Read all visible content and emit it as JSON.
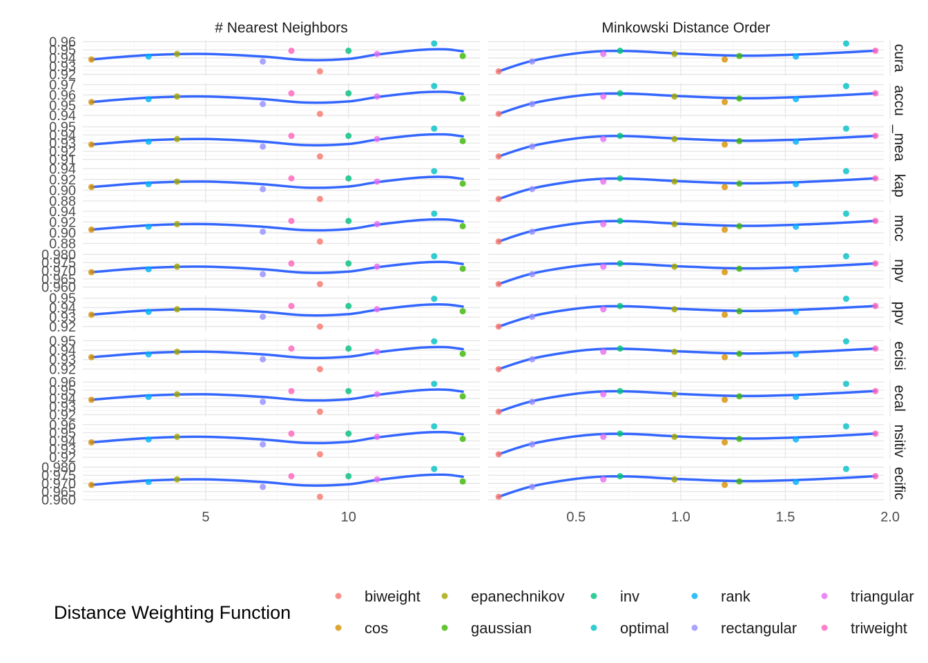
{
  "chart_data": {
    "type": "scatter",
    "facet_columns": [
      "# Nearest Neighbors",
      "Minkowski Distance Order"
    ],
    "facet_rows": [
      "cura",
      "accu",
      "_mea",
      "kap",
      "mcc",
      "npv",
      "ppv",
      "ecisi",
      "ecal",
      "nsitiv",
      "ecific"
    ],
    "x_ticks": [
      [
        5,
        10
      ],
      [
        0.5,
        1.0,
        1.5,
        2.0
      ]
    ],
    "x_tick_labels": [
      [
        "5",
        "10"
      ],
      [
        "0.5",
        "1.0",
        "1.5",
        "2.0"
      ]
    ],
    "xlim": [
      [
        0.7,
        14.6
      ],
      [
        0.08,
        1.97
      ]
    ],
    "row_y_ticks": [
      [
        "0.96",
        "0.95",
        "0.94",
        "0.93",
        "0.92"
      ],
      [
        "0.97",
        "0.96",
        "0.95",
        "0.94"
      ],
      [
        "0.95",
        "0.94",
        "0.93",
        "0.92",
        "0.91"
      ],
      [
        "0.94",
        "0.92",
        "0.90",
        "0.88"
      ],
      [
        "0.94",
        "0.92",
        "0.90",
        "0.88"
      ],
      [
        "0.980",
        "0.975",
        "0.970",
        "0.965",
        "0.960"
      ],
      [
        "0.95",
        "0.94",
        "0.93",
        "0.92"
      ],
      [
        "0.95",
        "0.94",
        "0.93",
        "0.92"
      ],
      [
        "0.96",
        "0.95",
        "0.94",
        "0.93",
        "0.92"
      ],
      [
        "0.96",
        "0.95",
        "0.94",
        "0.93",
        "0.92"
      ],
      [
        "0.980",
        "0.975",
        "0.970",
        "0.965",
        "0.960"
      ]
    ],
    "row_ylim": [
      [
        0.918,
        0.962
      ],
      [
        0.937,
        0.972
      ],
      [
        0.908,
        0.952
      ],
      [
        0.875,
        0.942
      ],
      [
        0.875,
        0.942
      ],
      [
        0.959,
        0.981
      ],
      [
        0.915,
        0.953
      ],
      [
        0.915,
        0.953
      ],
      [
        0.918,
        0.962
      ],
      [
        0.918,
        0.962
      ],
      [
        0.959,
        0.981
      ]
    ],
    "points": [
      {
        "weight": "biweight",
        "k": 9,
        "p": 0.13
      },
      {
        "weight": "cos",
        "k": 1,
        "p": 1.21
      },
      {
        "weight": "epanechnikov",
        "k": 4,
        "p": 0.97
      },
      {
        "weight": "gaussian",
        "k": 14,
        "p": 1.28
      },
      {
        "weight": "inv",
        "k": 10,
        "p": 0.71
      },
      {
        "weight": "optimal",
        "k": 13,
        "p": 1.79
      },
      {
        "weight": "rank",
        "k": 3,
        "p": 1.55
      },
      {
        "weight": "rectangular",
        "k": 7,
        "p": 0.29
      },
      {
        "weight": "triangular",
        "k": 11,
        "p": 0.63
      },
      {
        "weight": "triweight",
        "k": 8,
        "p": 1.93
      }
    ],
    "metric_fraction": {
      "biweight": 0.04,
      "cos": 0.45,
      "epanechnikov": 0.64,
      "gaussian": 0.57,
      "inv": 0.75,
      "optimal": 1.0,
      "rank": 0.55,
      "rectangular": 0.38,
      "triangular": 0.64,
      "triweight": 0.75
    },
    "smooth_fraction": {
      "k": [
        [
          1,
          0.45
        ],
        [
          3,
          0.6
        ],
        [
          5,
          0.64
        ],
        [
          7,
          0.55
        ],
        [
          8.5,
          0.43
        ],
        [
          10,
          0.47
        ],
        [
          11,
          0.62
        ],
        [
          12.5,
          0.78
        ],
        [
          13.4,
          0.8
        ],
        [
          14,
          0.73
        ]
      ],
      "p": [
        [
          0.13,
          0.04
        ],
        [
          0.3,
          0.42
        ],
        [
          0.55,
          0.7
        ],
        [
          0.75,
          0.74
        ],
        [
          1.0,
          0.65
        ],
        [
          1.3,
          0.58
        ],
        [
          1.6,
          0.63
        ],
        [
          1.93,
          0.75
        ]
      ]
    },
    "smooth_color": "#3366ff"
  },
  "legend": {
    "title": "Distance Weighting Function",
    "items": [
      {
        "label": "biweight",
        "color": "#f8766d"
      },
      {
        "label": "cos",
        "color": "#d89000"
      },
      {
        "label": "epanechnikov",
        "color": "#a3a500"
      },
      {
        "label": "gaussian",
        "color": "#39b600"
      },
      {
        "label": "inv",
        "color": "#00bf7d"
      },
      {
        "label": "optimal",
        "color": "#00bfc4"
      },
      {
        "label": "rank",
        "color": "#00b0f6"
      },
      {
        "label": "rectangular",
        "color": "#9590ff"
      },
      {
        "label": "triangular",
        "color": "#e76bf3"
      },
      {
        "label": "triweight",
        "color": "#ff62bc"
      }
    ]
  }
}
